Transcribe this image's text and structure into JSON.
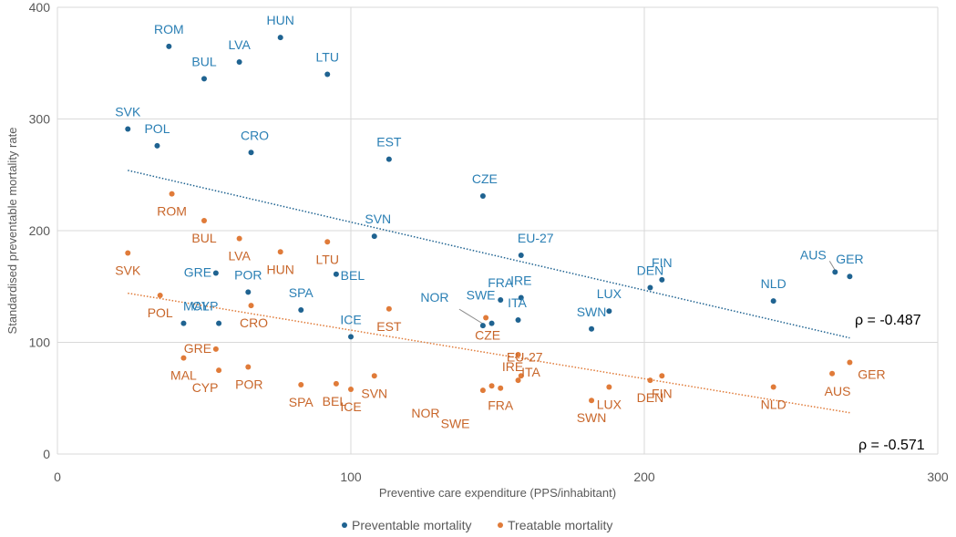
{
  "chart_data": {
    "type": "scatter",
    "title": "",
    "xlabel": "Preventive care expenditure (PPS/inhabitant)",
    "ylabel": "Standardised preventable mortality rate",
    "xlim": [
      0,
      300
    ],
    "ylim": [
      0,
      400
    ],
    "xticks": [
      "0",
      "100",
      "200",
      "300"
    ],
    "yticks": [
      "0",
      "100",
      "200",
      "300",
      "400"
    ],
    "grid": true,
    "legend_position": "bottom",
    "colors": {
      "preventable": "#1f6391",
      "treatable": "#e07b39",
      "preventable_label": "#2a7fb4",
      "treatable_label": "#c8662a"
    },
    "series": [
      {
        "name": "Preventable mortality",
        "key": "preventable",
        "points": [
          {
            "label": "ROM",
            "x": 38,
            "y": 365
          },
          {
            "label": "HUN",
            "x": 76,
            "y": 373
          },
          {
            "label": "LVA",
            "x": 62,
            "y": 351
          },
          {
            "label": "BUL",
            "x": 50,
            "y": 336
          },
          {
            "label": "LTU",
            "x": 92,
            "y": 340
          },
          {
            "label": "SVK",
            "x": 24,
            "y": 291
          },
          {
            "label": "POL",
            "x": 34,
            "y": 276
          },
          {
            "label": "CRO",
            "x": 66,
            "y": 270
          },
          {
            "label": "EST",
            "x": 113,
            "y": 264
          },
          {
            "label": "CZE",
            "x": 145,
            "y": 231
          },
          {
            "label": "SVN",
            "x": 108,
            "y": 195
          },
          {
            "label": "EU-27",
            "x": 158,
            "y": 178
          },
          {
            "label": "GRE",
            "x": 54,
            "y": 162
          },
          {
            "label": "BEL",
            "x": 95,
            "y": 161
          },
          {
            "label": "POR",
            "x": 65,
            "y": 145
          },
          {
            "label": "SPA",
            "x": 83,
            "y": 129
          },
          {
            "label": "MAL",
            "x": 43,
            "y": 117
          },
          {
            "label": "CYP",
            "x": 55,
            "y": 117
          },
          {
            "label": "ICE",
            "x": 100,
            "y": 105
          },
          {
            "label": "NOR",
            "x": 145,
            "y": 115
          },
          {
            "label": "SWE",
            "x": 148,
            "y": 117
          },
          {
            "label": "FRA",
            "x": 151,
            "y": 138
          },
          {
            "label": "IRE",
            "x": 158,
            "y": 140
          },
          {
            "label": "ITA",
            "x": 157,
            "y": 120
          },
          {
            "label": "SWN",
            "x": 182,
            "y": 112
          },
          {
            "label": "LUX",
            "x": 188,
            "y": 128
          },
          {
            "label": "DEN",
            "x": 202,
            "y": 149
          },
          {
            "label": "FIN",
            "x": 206,
            "y": 156
          },
          {
            "label": "NLD",
            "x": 244,
            "y": 137
          },
          {
            "label": "AUS",
            "x": 265,
            "y": 163
          },
          {
            "label": "GER",
            "x": 270,
            "y": 159
          }
        ],
        "trend": {
          "x": [
            24,
            270
          ],
          "y": [
            254,
            104
          ]
        },
        "annotation": "ρ = -0.487"
      },
      {
        "name": "Treatable mortality",
        "key": "treatable",
        "points": [
          {
            "label": "ROM",
            "x": 39,
            "y": 233
          },
          {
            "label": "BUL",
            "x": 50,
            "y": 209
          },
          {
            "label": "LVA",
            "x": 62,
            "y": 193
          },
          {
            "label": "HUN",
            "x": 76,
            "y": 181
          },
          {
            "label": "LTU",
            "x": 92,
            "y": 190
          },
          {
            "label": "SVK",
            "x": 24,
            "y": 180
          },
          {
            "label": "POL",
            "x": 35,
            "y": 142
          },
          {
            "label": "CRO",
            "x": 66,
            "y": 133
          },
          {
            "label": "EST",
            "x": 113,
            "y": 130
          },
          {
            "label": "CZE",
            "x": 146,
            "y": 122
          },
          {
            "label": "GRE",
            "x": 54,
            "y": 94
          },
          {
            "label": "MAL",
            "x": 43,
            "y": 86
          },
          {
            "label": "CYP",
            "x": 55,
            "y": 75
          },
          {
            "label": "POR",
            "x": 65,
            "y": 78
          },
          {
            "label": "SPA",
            "x": 83,
            "y": 62
          },
          {
            "label": "BEL",
            "x": 95,
            "y": 63
          },
          {
            "label": "ICE",
            "x": 100,
            "y": 58
          },
          {
            "label": "SVN",
            "x": 108,
            "y": 70
          },
          {
            "label": "NOR",
            "x": 145,
            "y": 57
          },
          {
            "label": "SWE",
            "x": 148,
            "y": 61
          },
          {
            "label": "FRA",
            "x": 151,
            "y": 59
          },
          {
            "label": "IRE",
            "x": 157,
            "y": 66
          },
          {
            "label": "EU-27",
            "x": 158,
            "y": 70
          },
          {
            "label": "ITA",
            "x": 157,
            "y": 89
          },
          {
            "label": "SWN",
            "x": 182,
            "y": 48
          },
          {
            "label": "LUX",
            "x": 188,
            "y": 60
          },
          {
            "label": "DEN",
            "x": 202,
            "y": 66
          },
          {
            "label": "FIN",
            "x": 206,
            "y": 70
          },
          {
            "label": "NLD",
            "x": 244,
            "y": 60
          },
          {
            "label": "AUS",
            "x": 264,
            "y": 72
          },
          {
            "label": "GER",
            "x": 270,
            "y": 82
          }
        ],
        "trend": {
          "x": [
            24,
            270
          ],
          "y": [
            144,
            37
          ]
        },
        "annotation": "ρ = -0.571"
      }
    ]
  }
}
